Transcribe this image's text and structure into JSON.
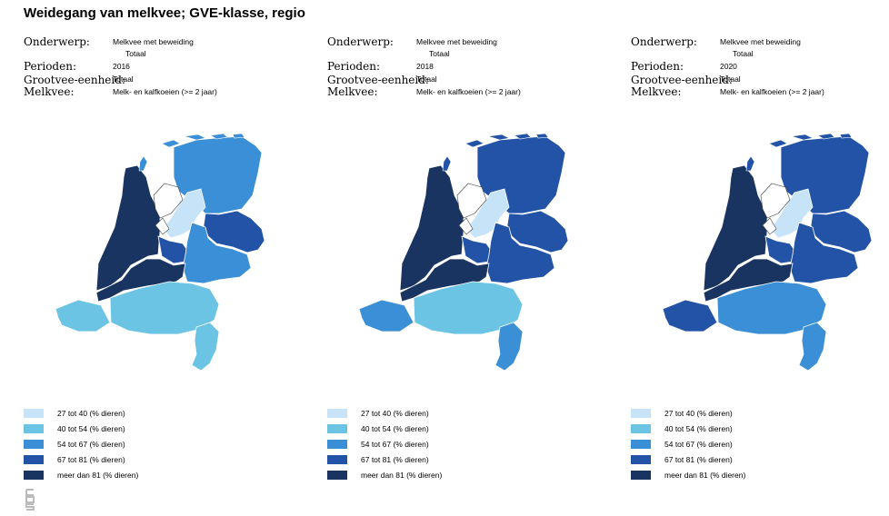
{
  "title": "Weidegang van melkvee; GVE-klasse, regio",
  "meta_labels": {
    "onderwerp": "Onderwerp:",
    "perioden": "Perioden:",
    "grootvee": "Grootvee-eenheid:",
    "melkvee": "Melkvee:"
  },
  "meta_values": {
    "onderwerp_1": "Melkvee met beweiding",
    "onderwerp_2": "Totaal",
    "grootvee": "Totaal",
    "melkvee": "Melk- en kalfkoeien (>= 2 jaar)"
  },
  "panels": [
    {
      "period": "2016",
      "levels": {
        "north": 3,
        "noordholland": 5,
        "flevo": 1,
        "overijssel": 4,
        "utrecht": 4,
        "gelderland": 3,
        "zuidholland": 5,
        "zeeland": 2,
        "brabant": 2,
        "limburg": 2
      }
    },
    {
      "period": "2018",
      "levels": {
        "north": 4,
        "noordholland": 5,
        "flevo": 1,
        "overijssel": 4,
        "utrecht": 4,
        "gelderland": 4,
        "zuidholland": 5,
        "zeeland": 3,
        "brabant": 2,
        "limburg": 3
      }
    },
    {
      "period": "2020",
      "levels": {
        "north": 4,
        "noordholland": 5,
        "flevo": 1,
        "overijssel": 4,
        "utrecht": 4,
        "gelderland": 4,
        "zuidholland": 5,
        "zeeland": 4,
        "brabant": 3,
        "limburg": 3
      }
    }
  ],
  "legend": [
    {
      "label": "27 tot 40 (% dieren)",
      "color": "#c6e3f7"
    },
    {
      "label": "40 tot 54 (% dieren)",
      "color": "#6cc4e4"
    },
    {
      "label": "54 tot 67 (% dieren)",
      "color": "#3a8fd6"
    },
    {
      "label": "67 tot 81 (% dieren)",
      "color": "#2353a6"
    },
    {
      "label": "meer dan 81 (% dieren)",
      "color": "#1a3461"
    }
  ],
  "logo_icon": "cbs-logo-icon"
}
